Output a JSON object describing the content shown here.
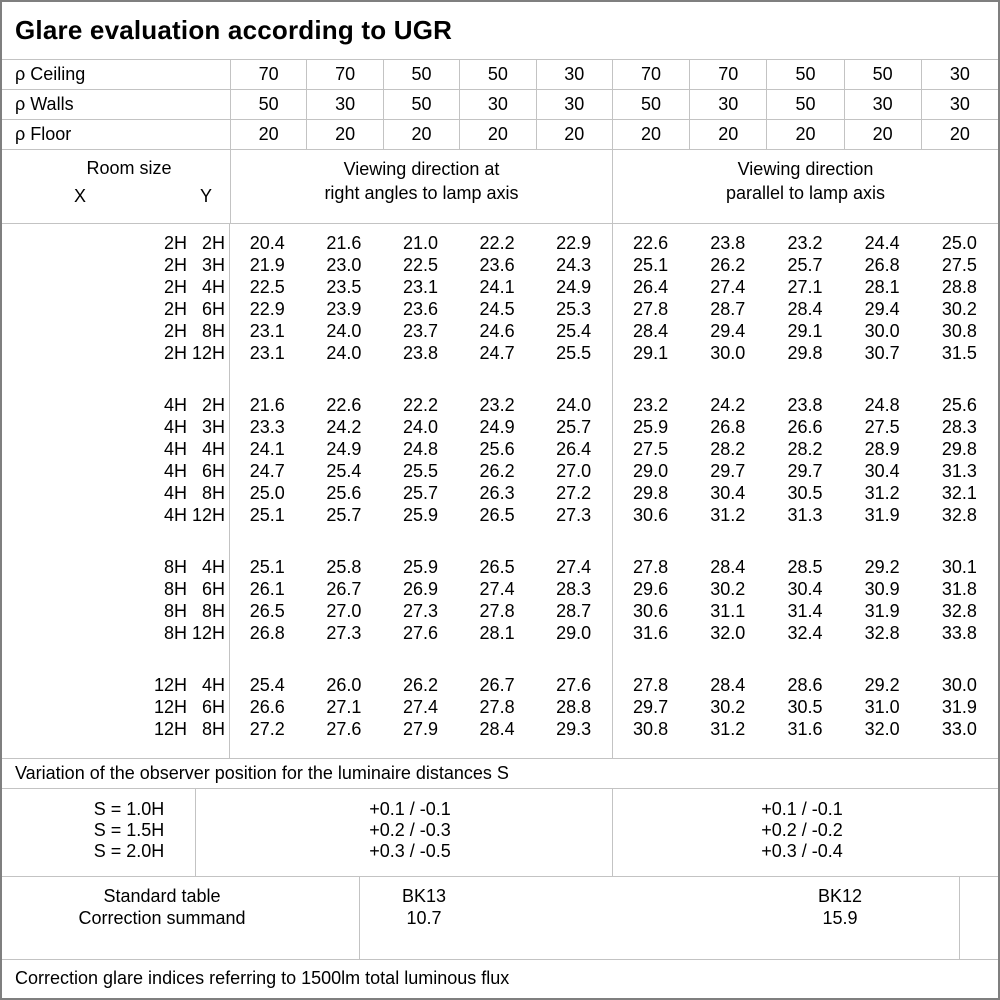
{
  "title": "Glare evaluation according to UGR",
  "reflectance_rows": [
    {
      "label": "ρ Ceiling",
      "values": [
        "70",
        "70",
        "50",
        "50",
        "30",
        "70",
        "70",
        "50",
        "50",
        "30"
      ]
    },
    {
      "label": "ρ Walls",
      "values": [
        "50",
        "30",
        "50",
        "30",
        "30",
        "50",
        "30",
        "50",
        "30",
        "30"
      ]
    },
    {
      "label": "ρ Floor",
      "values": [
        "20",
        "20",
        "20",
        "20",
        "20",
        "20",
        "20",
        "20",
        "20",
        "20"
      ]
    }
  ],
  "header": {
    "room_size_label": "Room size",
    "x_label": "X",
    "y_label": "Y",
    "left_group_line1": "Viewing direction at",
    "left_group_line2": "right angles to lamp axis",
    "right_group_line1": "Viewing direction",
    "right_group_line2": "parallel to lamp axis"
  },
  "ugr_blocks": [
    {
      "rows": [
        {
          "x": "2H",
          "y": "2H",
          "values": [
            "20.4",
            "21.6",
            "21.0",
            "22.2",
            "22.9",
            "22.6",
            "23.8",
            "23.2",
            "24.4",
            "25.0"
          ]
        },
        {
          "x": "2H",
          "y": "3H",
          "values": [
            "21.9",
            "23.0",
            "22.5",
            "23.6",
            "24.3",
            "25.1",
            "26.2",
            "25.7",
            "26.8",
            "27.5"
          ]
        },
        {
          "x": "2H",
          "y": "4H",
          "values": [
            "22.5",
            "23.5",
            "23.1",
            "24.1",
            "24.9",
            "26.4",
            "27.4",
            "27.1",
            "28.1",
            "28.8"
          ]
        },
        {
          "x": "2H",
          "y": "6H",
          "values": [
            "22.9",
            "23.9",
            "23.6",
            "24.5",
            "25.3",
            "27.8",
            "28.7",
            "28.4",
            "29.4",
            "30.2"
          ]
        },
        {
          "x": "2H",
          "y": "8H",
          "values": [
            "23.1",
            "24.0",
            "23.7",
            "24.6",
            "25.4",
            "28.4",
            "29.4",
            "29.1",
            "30.0",
            "30.8"
          ]
        },
        {
          "x": "2H",
          "y": "12H",
          "values": [
            "23.1",
            "24.0",
            "23.8",
            "24.7",
            "25.5",
            "29.1",
            "30.0",
            "29.8",
            "30.7",
            "31.5"
          ]
        }
      ]
    },
    {
      "rows": [
        {
          "x": "4H",
          "y": "2H",
          "values": [
            "21.6",
            "22.6",
            "22.2",
            "23.2",
            "24.0",
            "23.2",
            "24.2",
            "23.8",
            "24.8",
            "25.6"
          ]
        },
        {
          "x": "4H",
          "y": "3H",
          "values": [
            "23.3",
            "24.2",
            "24.0",
            "24.9",
            "25.7",
            "25.9",
            "26.8",
            "26.6",
            "27.5",
            "28.3"
          ]
        },
        {
          "x": "4H",
          "y": "4H",
          "values": [
            "24.1",
            "24.9",
            "24.8",
            "25.6",
            "26.4",
            "27.5",
            "28.2",
            "28.2",
            "28.9",
            "29.8"
          ]
        },
        {
          "x": "4H",
          "y": "6H",
          "values": [
            "24.7",
            "25.4",
            "25.5",
            "26.2",
            "27.0",
            "29.0",
            "29.7",
            "29.7",
            "30.4",
            "31.3"
          ]
        },
        {
          "x": "4H",
          "y": "8H",
          "values": [
            "25.0",
            "25.6",
            "25.7",
            "26.3",
            "27.2",
            "29.8",
            "30.4",
            "30.5",
            "31.2",
            "32.1"
          ]
        },
        {
          "x": "4H",
          "y": "12H",
          "values": [
            "25.1",
            "25.7",
            "25.9",
            "26.5",
            "27.3",
            "30.6",
            "31.2",
            "31.3",
            "31.9",
            "32.8"
          ]
        }
      ]
    },
    {
      "rows": [
        {
          "x": "8H",
          "y": "4H",
          "values": [
            "25.1",
            "25.8",
            "25.9",
            "26.5",
            "27.4",
            "27.8",
            "28.4",
            "28.5",
            "29.2",
            "30.1"
          ]
        },
        {
          "x": "8H",
          "y": "6H",
          "values": [
            "26.1",
            "26.7",
            "26.9",
            "27.4",
            "28.3",
            "29.6",
            "30.2",
            "30.4",
            "30.9",
            "31.8"
          ]
        },
        {
          "x": "8H",
          "y": "8H",
          "values": [
            "26.5",
            "27.0",
            "27.3",
            "27.8",
            "28.7",
            "30.6",
            "31.1",
            "31.4",
            "31.9",
            "32.8"
          ]
        },
        {
          "x": "8H",
          "y": "12H",
          "values": [
            "26.8",
            "27.3",
            "27.6",
            "28.1",
            "29.0",
            "31.6",
            "32.0",
            "32.4",
            "32.8",
            "33.8"
          ]
        }
      ]
    },
    {
      "rows": [
        {
          "x": "12H",
          "y": "4H",
          "values": [
            "25.4",
            "26.0",
            "26.2",
            "26.7",
            "27.6",
            "27.8",
            "28.4",
            "28.6",
            "29.2",
            "30.0"
          ]
        },
        {
          "x": "12H",
          "y": "6H",
          "values": [
            "26.6",
            "27.1",
            "27.4",
            "27.8",
            "28.8",
            "29.7",
            "30.2",
            "30.5",
            "31.0",
            "31.9"
          ]
        },
        {
          "x": "12H",
          "y": "8H",
          "values": [
            "27.2",
            "27.6",
            "27.9",
            "28.4",
            "29.3",
            "30.8",
            "31.2",
            "31.6",
            "32.0",
            "33.0"
          ]
        }
      ]
    }
  ],
  "variation_note": "Variation of the observer position for the luminaire distances S",
  "s_table": {
    "labels": [
      "S = 1.0H",
      "S = 1.5H",
      "S = 2.0H"
    ],
    "right_angle_values": [
      "+0.1 / -0.1",
      "+0.2 / -0.3",
      "+0.3 / -0.5"
    ],
    "parallel_values": [
      "+0.1 / -0.1",
      "+0.2 / -0.2",
      "+0.3 / -0.4"
    ]
  },
  "standard": {
    "table_label": "Standard table",
    "summand_label": "Correction summand",
    "right_angle_table": "BK13",
    "right_angle_summand": "10.7",
    "parallel_table": "BK12",
    "parallel_summand": "15.9"
  },
  "footer_note": "Correction glare indices referring to 1500lm total luminous flux",
  "colors": {
    "grid_line": "#c3c3c3",
    "outer_border": "#7f7f7f",
    "text": "#000000",
    "background": "#ffffff"
  }
}
